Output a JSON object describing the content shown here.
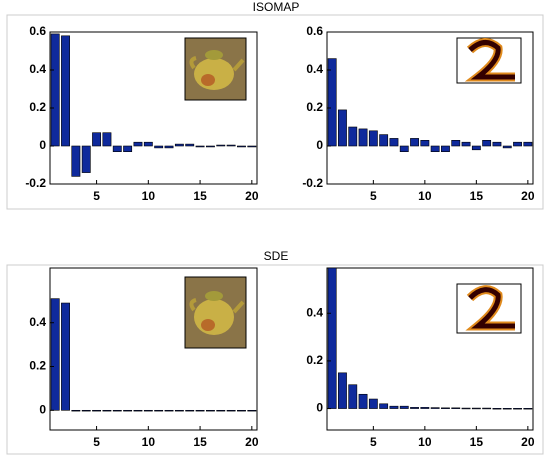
{
  "chart_data": [
    {
      "type": "bar",
      "title": "ISOMAP",
      "categories": [
        1,
        2,
        3,
        4,
        5,
        6,
        7,
        8,
        9,
        10,
        11,
        12,
        13,
        14,
        15,
        16,
        17,
        18,
        19,
        20
      ],
      "values": [
        0.59,
        0.58,
        -0.16,
        -0.14,
        0.07,
        0.07,
        -0.03,
        -0.03,
        0.02,
        0.02,
        -0.01,
        -0.01,
        0.01,
        0.01,
        -0.005,
        -0.005,
        0.005,
        0.005,
        -0.005,
        -0.005
      ],
      "color": "#0f2a9c",
      "xlim": [
        0.5,
        20.5
      ],
      "xticks": [
        5,
        10,
        15,
        20
      ],
      "ylim": [
        -0.2,
        0.6
      ],
      "yticks": [
        -0.2,
        0,
        0.2,
        0.4,
        0.6
      ]
    },
    {
      "type": "bar",
      "categories": [
        1,
        2,
        3,
        4,
        5,
        6,
        7,
        8,
        9,
        10,
        11,
        12,
        13,
        14,
        15,
        16,
        17,
        18,
        19,
        20
      ],
      "values": [
        0.46,
        0.19,
        0.1,
        0.09,
        0.08,
        0.06,
        0.04,
        -0.03,
        0.04,
        0.03,
        -0.03,
        -0.03,
        0.03,
        0.02,
        -0.02,
        0.03,
        0.02,
        -0.01,
        0.02,
        0.02
      ],
      "color": "#0f2a9c",
      "xlim": [
        0.5,
        20.5
      ],
      "xticks": [
        5,
        10,
        15,
        20
      ],
      "ylim": [
        -0.2,
        0.6
      ],
      "yticks": [
        -0.2,
        0,
        0.2,
        0.4,
        0.6
      ]
    },
    {
      "type": "bar",
      "title": "SDE",
      "categories": [
        1,
        2,
        3,
        4,
        5,
        6,
        7,
        8,
        9,
        10,
        11,
        12,
        13,
        14,
        15,
        16,
        17,
        18,
        19,
        20
      ],
      "values": [
        0.51,
        0.49,
        0,
        0,
        0,
        0,
        0,
        0,
        0,
        0,
        0,
        0,
        0,
        0,
        0,
        0,
        0,
        0,
        0,
        0
      ],
      "color": "#0f2a9c",
      "xlim": [
        0.5,
        20.5
      ],
      "xticks": [
        5,
        10,
        15,
        20
      ],
      "ylim": [
        -0.09,
        0.65
      ],
      "yticks": [
        0,
        0.2,
        0.4
      ]
    },
    {
      "type": "bar",
      "categories": [
        1,
        2,
        3,
        4,
        5,
        6,
        7,
        8,
        9,
        10,
        11,
        12,
        13,
        14,
        15,
        16,
        17,
        18,
        19,
        20
      ],
      "values": [
        0.59,
        0.15,
        0.1,
        0.06,
        0.04,
        0.02,
        0.01,
        0.01,
        0.005,
        0.005,
        0.004,
        0.003,
        0.003,
        0.002,
        0.002,
        0.002,
        0.001,
        0.001,
        0.001,
        0.001
      ],
      "color": "#0f2a9c",
      "xlim": [
        0.5,
        20.5
      ],
      "xticks": [
        5,
        10,
        15,
        20
      ],
      "ylim": [
        -0.09,
        0.59
      ],
      "yticks": [
        0,
        0.2,
        0.4
      ]
    }
  ]
}
